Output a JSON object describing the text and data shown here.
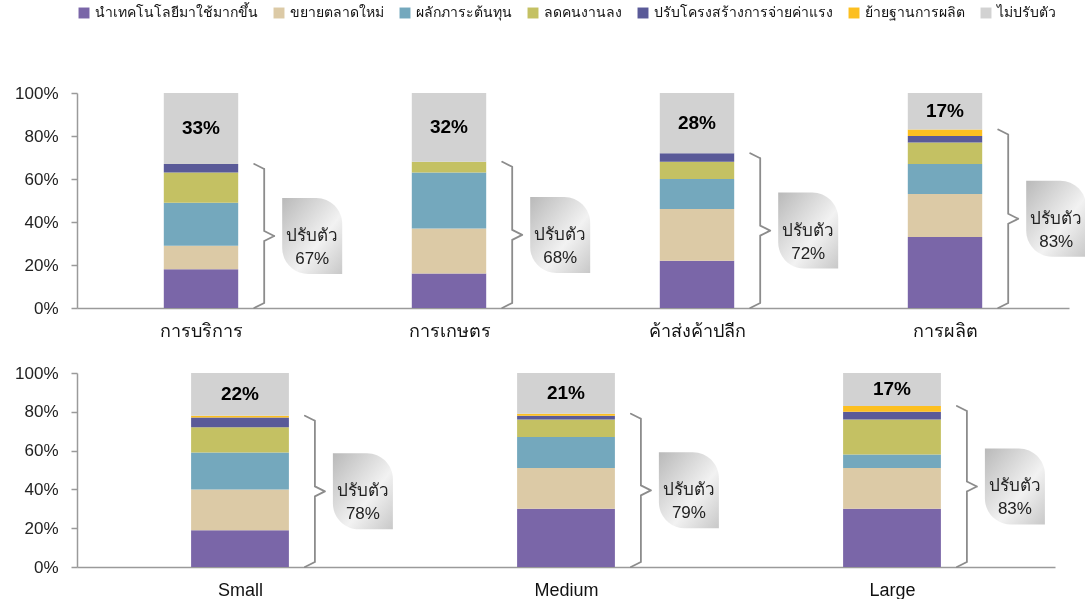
{
  "chart_data": [
    {
      "type": "bar",
      "stacked": true,
      "legend": "top",
      "categories": [
        "การบริการ",
        "การเกษตร",
        "ค้าส่งค้าปลีก",
        "การผลิต"
      ],
      "series": [
        {
          "name": "นำเทคโนโลยีมาใช้มากขึ้น",
          "color": "#7a66a8",
          "values": [
            18,
            16,
            22,
            33
          ]
        },
        {
          "name": "ขยายตลาดใหม่",
          "color": "#dccaa6",
          "values": [
            11,
            21,
            24,
            20
          ]
        },
        {
          "name": "ผลักภาระต้นทุน",
          "color": "#74a8bd",
          "values": [
            20,
            26,
            14,
            14
          ]
        },
        {
          "name": "ลดคนงานลง",
          "color": "#c4c163",
          "values": [
            14,
            5,
            8,
            10
          ]
        },
        {
          "name": "ปรับโครงสร้างการจ่ายค่าแรง",
          "color": "#5a5a98",
          "values": [
            4,
            0,
            4,
            3
          ]
        },
        {
          "name": "ย้ายฐานการผลิต",
          "color": "#fcbf20",
          "values": [
            0,
            0,
            0,
            3
          ]
        },
        {
          "name": "ไม่ปรับตัว",
          "color": "#d2d2d2",
          "values": [
            33,
            32,
            28,
            17
          ],
          "value_labels": [
            "33%",
            "32%",
            "28%",
            "17%"
          ]
        }
      ],
      "ylim": [
        0,
        100
      ],
      "yticks": [
        {
          "value": 0,
          "label": "0%"
        },
        {
          "value": 20,
          "label": "20%"
        },
        {
          "value": 40,
          "label": "40%"
        },
        {
          "value": 60,
          "label": "60%"
        },
        {
          "value": 80,
          "label": "80%"
        },
        {
          "value": 100,
          "label": "100%"
        }
      ],
      "annotations": [
        "ปรับตัว 67%",
        "ปรับตัว 68%",
        "ปรับตัว 72%",
        "ปรับตัว 83%"
      ]
    },
    {
      "type": "bar",
      "stacked": true,
      "categories": [
        "Small",
        "Medium",
        "Large"
      ],
      "series": [
        {
          "name": "นำเทคโนโลยีมาใช้มากขึ้น",
          "color": "#7a66a8",
          "values": [
            19,
            30,
            30
          ]
        },
        {
          "name": "ขยายตลาดใหม่",
          "color": "#dccaa6",
          "values": [
            21,
            21,
            21
          ]
        },
        {
          "name": "ผลักภาระต้นทุน",
          "color": "#74a8bd",
          "values": [
            19,
            16,
            7
          ]
        },
        {
          "name": "ลดคนงานลง",
          "color": "#c4c163",
          "values": [
            13,
            9,
            18
          ]
        },
        {
          "name": "ปรับโครงสร้างการจ่ายค่าแรง",
          "color": "#5a5a98",
          "values": [
            5,
            2,
            4
          ]
        },
        {
          "name": "ย้ายฐานการผลิต",
          "color": "#fcbf20",
          "values": [
            1,
            1,
            3
          ]
        },
        {
          "name": "ไม่ปรับตัว",
          "color": "#d2d2d2",
          "values": [
            22,
            21,
            17
          ],
          "value_labels": [
            "22%",
            "21%",
            "17%"
          ]
        }
      ],
      "ylim": [
        0,
        100
      ],
      "yticks": [
        {
          "value": 0,
          "label": "0%"
        },
        {
          "value": 20,
          "label": "20%"
        },
        {
          "value": 40,
          "label": "40%"
        },
        {
          "value": 60,
          "label": "60%"
        },
        {
          "value": 80,
          "label": "80%"
        },
        {
          "value": 100,
          "label": "100%"
        }
      ],
      "annotations": [
        "ปรับตัว 78%",
        "ปรับตัว 79%",
        "ปรับตัว 83%"
      ]
    }
  ]
}
